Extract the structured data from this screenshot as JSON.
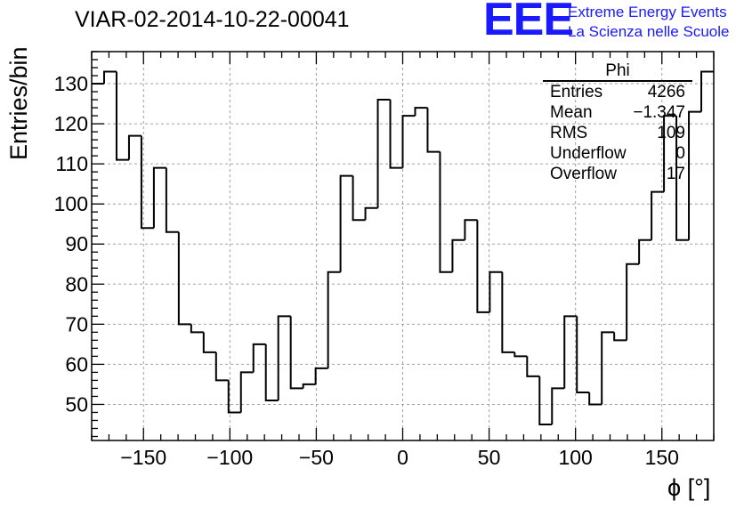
{
  "title": "VIAR-02-2014-10-22-00041",
  "logo": {
    "letters": "EEE",
    "line1": "Extreme Energy Events",
    "line2": "La Scienza nelle Scuole"
  },
  "stats": {
    "name": "Phi",
    "rows": [
      {
        "label": "Entries",
        "value": "4266"
      },
      {
        "label": "Mean",
        "value": "−1.347"
      },
      {
        "label": "RMS",
        "value": "109"
      },
      {
        "label": "Underflow",
        "value": "0"
      },
      {
        "label": "Overflow",
        "value": "17"
      }
    ]
  },
  "colors": {
    "accent": "#1a1aff",
    "grid": "#a0a0a0",
    "line": "#000000"
  },
  "chart_data": {
    "type": "bar",
    "style": "step-histogram",
    "title": "VIAR-02-2014-10-22-00041",
    "xlabel": "ϕ [°]",
    "ylabel": "Entries/bin",
    "xlim": [
      -180,
      180
    ],
    "ylim": [
      41,
      138
    ],
    "grid": true,
    "bin_width": 7.2,
    "bin_edges_start": -180,
    "values": [
      130,
      133,
      111,
      117,
      94,
      109,
      93,
      70,
      68,
      63,
      56,
      48,
      58,
      65,
      51,
      72,
      54,
      55,
      59,
      83,
      107,
      96,
      99,
      126,
      109,
      122,
      124,
      113,
      83,
      91,
      96,
      73,
      83,
      63,
      62,
      57,
      45,
      54,
      72,
      53,
      50,
      68,
      66,
      85,
      91,
      103,
      122,
      91,
      123,
      133
    ],
    "xticks": [
      -150,
      -100,
      -50,
      0,
      50,
      100,
      150
    ],
    "xtick_labels": [
      "−150",
      "−100",
      "−50",
      "0",
      "50",
      "100",
      "150"
    ],
    "yticks": [
      50,
      60,
      70,
      80,
      90,
      100,
      110,
      120,
      130
    ],
    "ytick_labels": [
      "50",
      "60",
      "70",
      "80",
      "90",
      "100",
      "110",
      "120",
      "130"
    ]
  }
}
